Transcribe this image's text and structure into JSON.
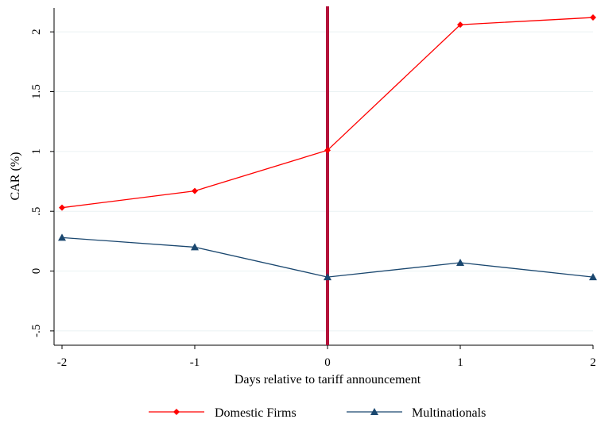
{
  "chart_data": {
    "type": "line",
    "x": [
      -2,
      -1,
      0,
      1,
      2
    ],
    "xticks": [
      "-2",
      "-1",
      "0",
      "1",
      "2"
    ],
    "yticks": [
      "-.5",
      "0",
      ".5",
      "1",
      "1.5",
      "2"
    ],
    "ytick_values": [
      -0.5,
      0,
      0.5,
      1,
      1.5,
      2
    ],
    "xlim": [
      -2,
      2
    ],
    "ylim": [
      -0.62,
      2.2
    ],
    "xlabel": "Days relative to tariff announcement",
    "ylabel": "CAR (%)",
    "vline_x": 0,
    "vline_color": "#b3123a",
    "grid": true,
    "legend_position": "bottom",
    "series": [
      {
        "name": "Domestic Firms",
        "values": [
          0.53,
          0.67,
          1.01,
          2.06,
          2.12
        ],
        "color": "#ff0000",
        "marker": "diamond"
      },
      {
        "name": "Multinationals",
        "values": [
          0.28,
          0.2,
          -0.05,
          0.07,
          -0.05
        ],
        "color": "#1a476f",
        "marker": "triangle"
      }
    ]
  }
}
